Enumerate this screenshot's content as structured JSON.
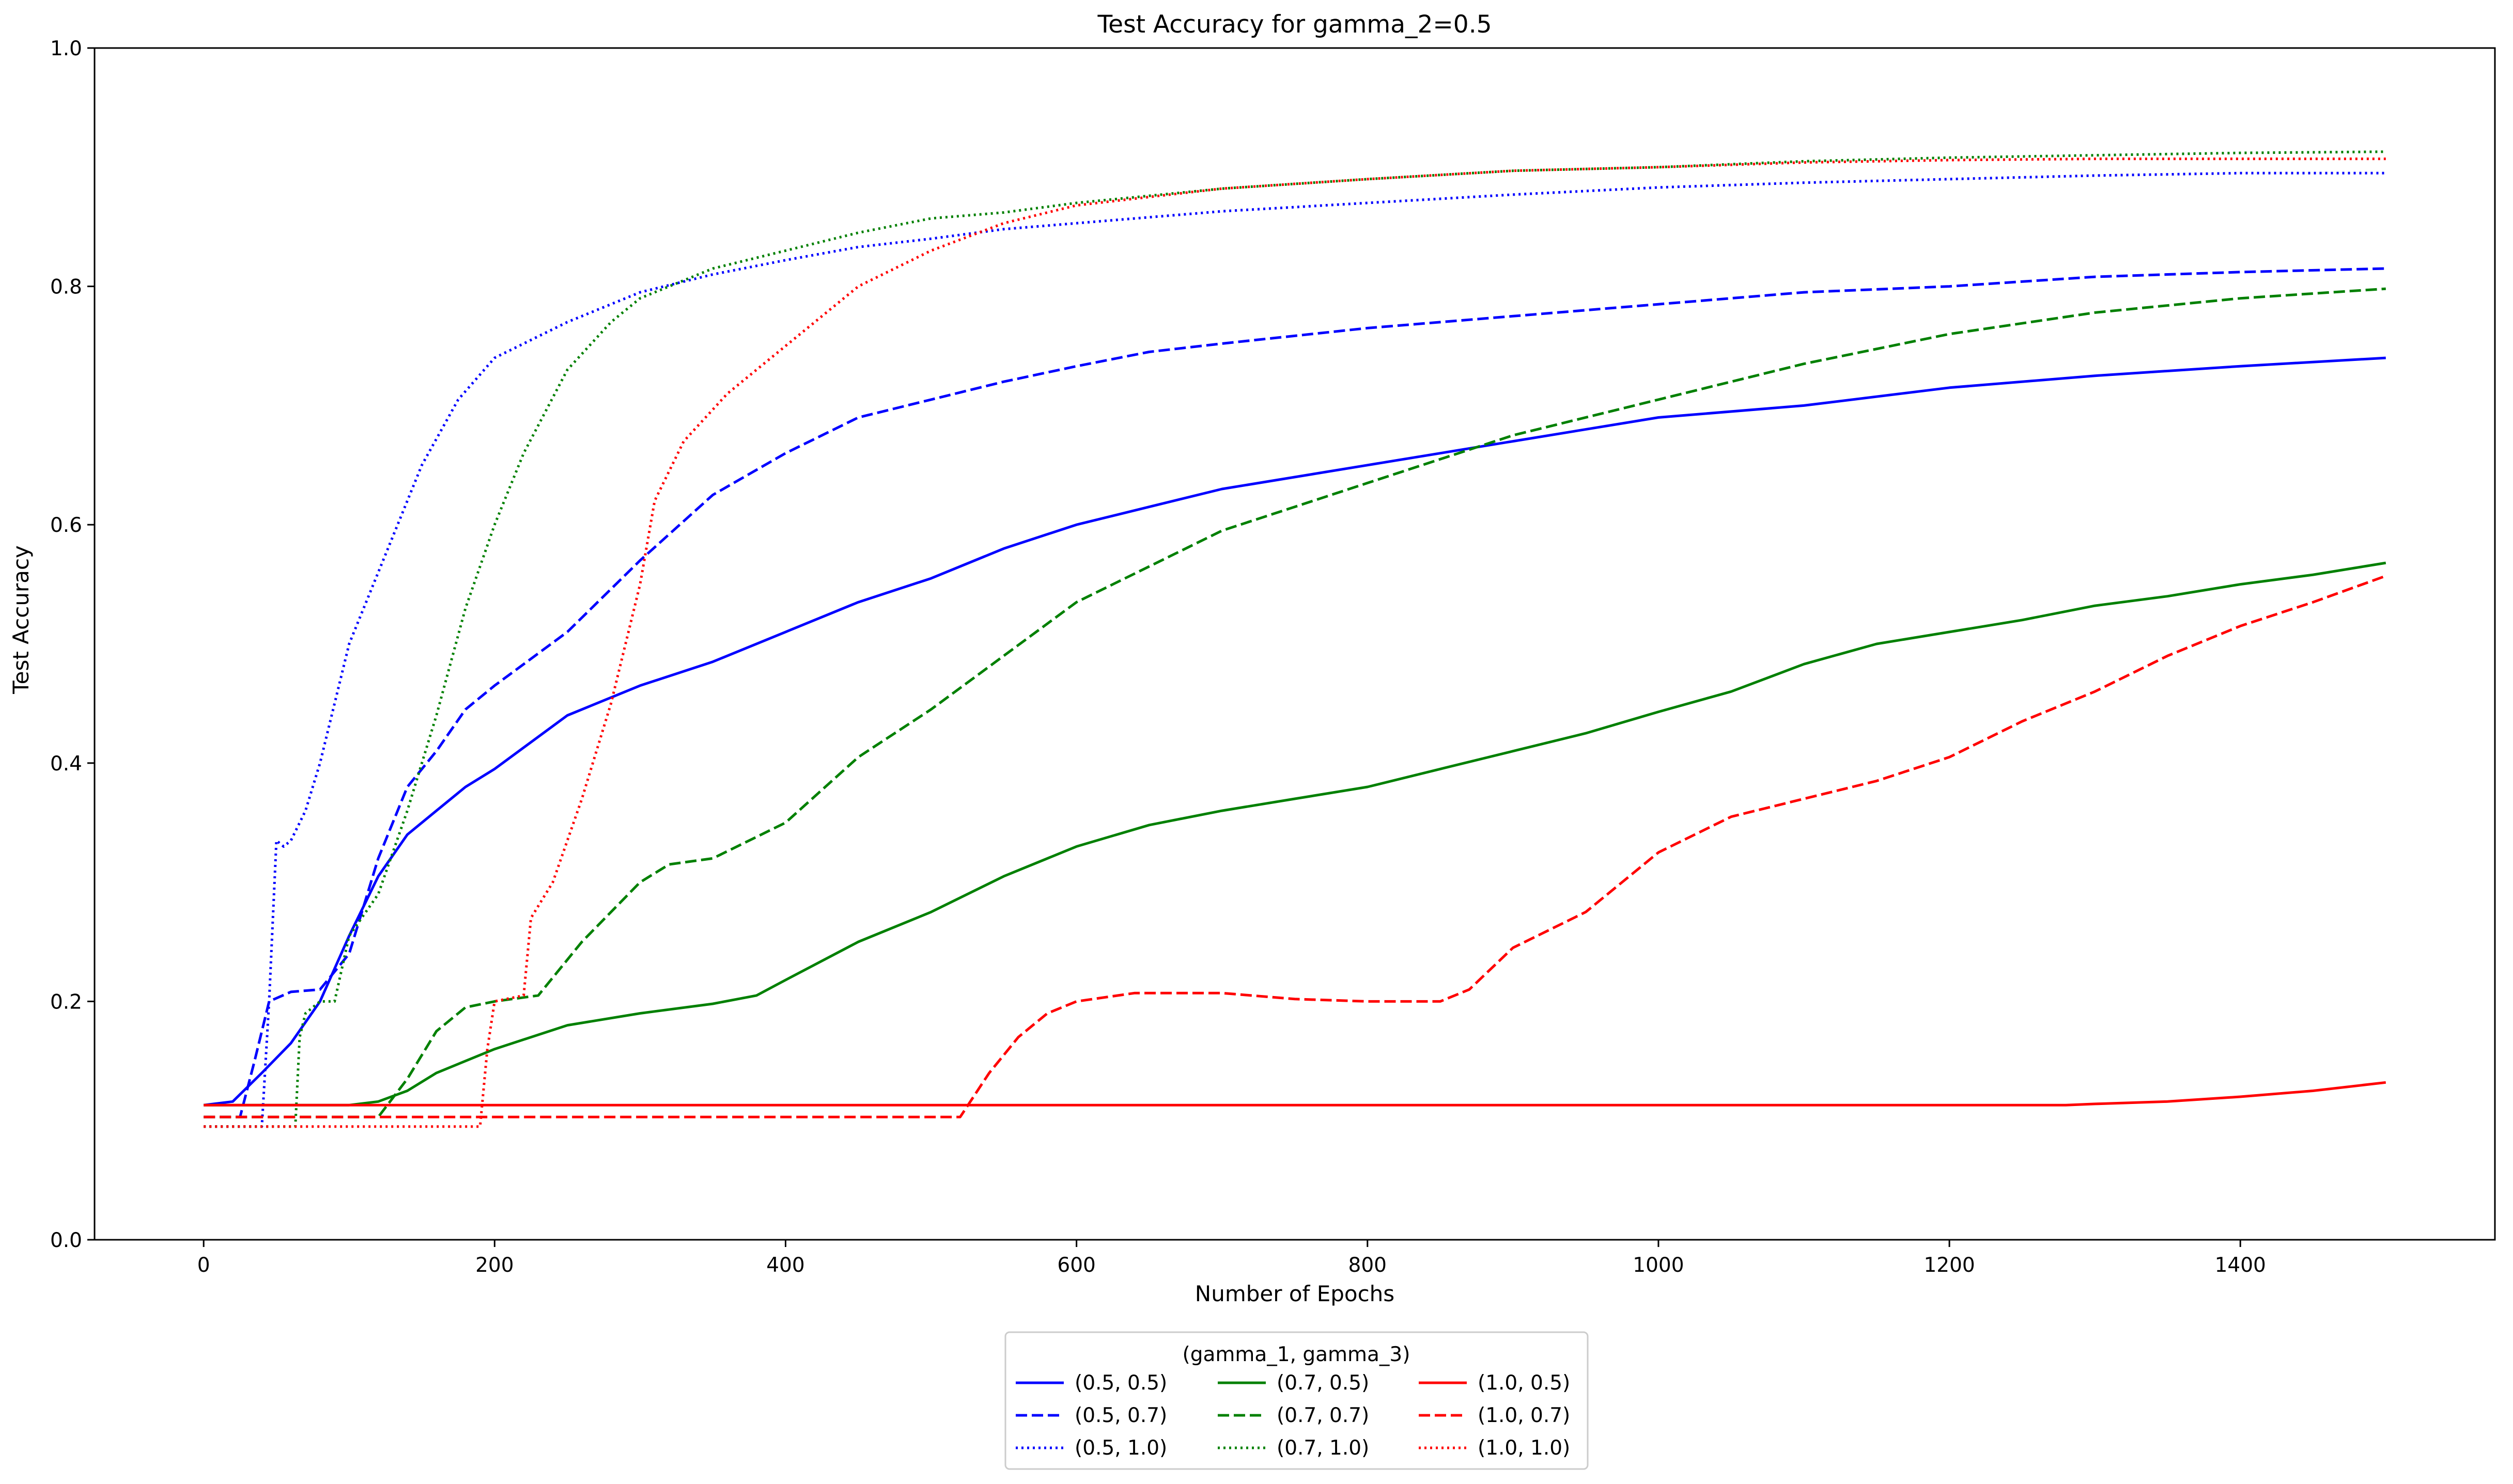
{
  "chart_data": {
    "type": "line",
    "title": "Test Accuracy for gamma_2=0.5",
    "xlabel": "Number of Epochs",
    "ylabel": "Test Accuracy",
    "xlim": [
      -75,
      1575
    ],
    "ylim": [
      0.0,
      1.0
    ],
    "xticks": [
      0,
      200,
      400,
      600,
      800,
      1000,
      1200,
      1400
    ],
    "yticks": [
      0.0,
      0.2,
      0.4,
      0.6,
      0.8,
      1.0
    ],
    "xtick_labels": [
      "0",
      "200",
      "400",
      "600",
      "800",
      "1000",
      "1200",
      "1400"
    ],
    "ytick_labels": [
      "0.0",
      "0.2",
      "0.4",
      "0.6",
      "0.8",
      "1.0"
    ],
    "grid": false,
    "legend": {
      "title": "(gamma_1, gamma_3)",
      "placement": "below-center",
      "columns": 3
    },
    "series": [
      {
        "name": "(0.5, 0.5)",
        "color": "#0000ff",
        "dash": "solid",
        "points": [
          [
            0,
            0.113
          ],
          [
            20,
            0.116
          ],
          [
            40,
            0.14
          ],
          [
            60,
            0.165
          ],
          [
            80,
            0.2
          ],
          [
            100,
            0.255
          ],
          [
            120,
            0.305
          ],
          [
            140,
            0.34
          ],
          [
            160,
            0.36
          ],
          [
            180,
            0.38
          ],
          [
            200,
            0.395
          ],
          [
            250,
            0.44
          ],
          [
            300,
            0.465
          ],
          [
            350,
            0.485
          ],
          [
            400,
            0.51
          ],
          [
            450,
            0.535
          ],
          [
            500,
            0.555
          ],
          [
            550,
            0.58
          ],
          [
            600,
            0.6
          ],
          [
            650,
            0.615
          ],
          [
            700,
            0.63
          ],
          [
            800,
            0.65
          ],
          [
            900,
            0.67
          ],
          [
            1000,
            0.69
          ],
          [
            1100,
            0.7
          ],
          [
            1200,
            0.715
          ],
          [
            1300,
            0.725
          ],
          [
            1400,
            0.733
          ],
          [
            1500,
            0.74
          ]
        ]
      },
      {
        "name": "(0.5, 0.7)",
        "color": "#0000ff",
        "dash": "dashed",
        "points": [
          [
            0,
            0.103
          ],
          [
            25,
            0.103
          ],
          [
            35,
            0.15
          ],
          [
            45,
            0.2
          ],
          [
            60,
            0.208
          ],
          [
            80,
            0.21
          ],
          [
            100,
            0.24
          ],
          [
            120,
            0.32
          ],
          [
            140,
            0.38
          ],
          [
            160,
            0.41
          ],
          [
            180,
            0.445
          ],
          [
            200,
            0.465
          ],
          [
            250,
            0.51
          ],
          [
            300,
            0.57
          ],
          [
            350,
            0.625
          ],
          [
            400,
            0.66
          ],
          [
            450,
            0.69
          ],
          [
            500,
            0.705
          ],
          [
            550,
            0.72
          ],
          [
            600,
            0.733
          ],
          [
            650,
            0.745
          ],
          [
            700,
            0.752
          ],
          [
            800,
            0.765
          ],
          [
            900,
            0.775
          ],
          [
            1000,
            0.785
          ],
          [
            1100,
            0.795
          ],
          [
            1200,
            0.8
          ],
          [
            1300,
            0.808
          ],
          [
            1400,
            0.812
          ],
          [
            1500,
            0.815
          ]
        ]
      },
      {
        "name": "(0.5, 1.0)",
        "color": "#0000ff",
        "dash": "dotted",
        "points": [
          [
            0,
            0.095
          ],
          [
            40,
            0.095
          ],
          [
            45,
            0.2
          ],
          [
            50,
            0.335
          ],
          [
            55,
            0.33
          ],
          [
            60,
            0.335
          ],
          [
            70,
            0.36
          ],
          [
            80,
            0.4
          ],
          [
            100,
            0.5
          ],
          [
            120,
            0.56
          ],
          [
            150,
            0.65
          ],
          [
            175,
            0.705
          ],
          [
            200,
            0.74
          ],
          [
            250,
            0.77
          ],
          [
            300,
            0.795
          ],
          [
            350,
            0.81
          ],
          [
            400,
            0.822
          ],
          [
            450,
            0.833
          ],
          [
            500,
            0.84
          ],
          [
            550,
            0.848
          ],
          [
            600,
            0.853
          ],
          [
            700,
            0.863
          ],
          [
            800,
            0.87
          ],
          [
            900,
            0.877
          ],
          [
            1000,
            0.883
          ],
          [
            1100,
            0.887
          ],
          [
            1200,
            0.89
          ],
          [
            1300,
            0.893
          ],
          [
            1400,
            0.895
          ],
          [
            1500,
            0.895
          ]
        ]
      },
      {
        "name": "(0.7, 0.5)",
        "color": "#008000",
        "dash": "solid",
        "points": [
          [
            0,
            0.113
          ],
          [
            100,
            0.113
          ],
          [
            120,
            0.116
          ],
          [
            140,
            0.125
          ],
          [
            160,
            0.14
          ],
          [
            200,
            0.16
          ],
          [
            250,
            0.18
          ],
          [
            300,
            0.19
          ],
          [
            350,
            0.198
          ],
          [
            380,
            0.205
          ],
          [
            400,
            0.218
          ],
          [
            450,
            0.25
          ],
          [
            500,
            0.275
          ],
          [
            550,
            0.305
          ],
          [
            600,
            0.33
          ],
          [
            650,
            0.348
          ],
          [
            700,
            0.36
          ],
          [
            750,
            0.37
          ],
          [
            800,
            0.38
          ],
          [
            850,
            0.395
          ],
          [
            900,
            0.41
          ],
          [
            950,
            0.425
          ],
          [
            1000,
            0.443
          ],
          [
            1050,
            0.46
          ],
          [
            1100,
            0.483
          ],
          [
            1150,
            0.5
          ],
          [
            1200,
            0.51
          ],
          [
            1250,
            0.52
          ],
          [
            1300,
            0.532
          ],
          [
            1350,
            0.54
          ],
          [
            1400,
            0.55
          ],
          [
            1450,
            0.558
          ],
          [
            1500,
            0.568
          ]
        ]
      },
      {
        "name": "(0.7, 0.7)",
        "color": "#008000",
        "dash": "dashed",
        "points": [
          [
            0,
            0.103
          ],
          [
            120,
            0.103
          ],
          [
            140,
            0.135
          ],
          [
            160,
            0.175
          ],
          [
            180,
            0.195
          ],
          [
            200,
            0.2
          ],
          [
            230,
            0.205
          ],
          [
            260,
            0.25
          ],
          [
            300,
            0.3
          ],
          [
            320,
            0.315
          ],
          [
            350,
            0.32
          ],
          [
            400,
            0.35
          ],
          [
            450,
            0.405
          ],
          [
            500,
            0.445
          ],
          [
            550,
            0.49
          ],
          [
            600,
            0.535
          ],
          [
            650,
            0.565
          ],
          [
            700,
            0.595
          ],
          [
            750,
            0.615
          ],
          [
            800,
            0.635
          ],
          [
            850,
            0.655
          ],
          [
            900,
            0.675
          ],
          [
            1000,
            0.705
          ],
          [
            1100,
            0.735
          ],
          [
            1200,
            0.76
          ],
          [
            1300,
            0.778
          ],
          [
            1400,
            0.79
          ],
          [
            1500,
            0.798
          ]
        ]
      },
      {
        "name": "(0.7, 1.0)",
        "color": "#008000",
        "dash": "dotted",
        "points": [
          [
            0,
            0.095
          ],
          [
            63,
            0.095
          ],
          [
            66,
            0.17
          ],
          [
            70,
            0.19
          ],
          [
            80,
            0.2
          ],
          [
            90,
            0.2
          ],
          [
            100,
            0.255
          ],
          [
            120,
            0.29
          ],
          [
            140,
            0.36
          ],
          [
            160,
            0.44
          ],
          [
            180,
            0.53
          ],
          [
            200,
            0.6
          ],
          [
            220,
            0.66
          ],
          [
            250,
            0.73
          ],
          [
            280,
            0.77
          ],
          [
            300,
            0.79
          ],
          [
            350,
            0.815
          ],
          [
            400,
            0.83
          ],
          [
            450,
            0.845
          ],
          [
            500,
            0.857
          ],
          [
            550,
            0.862
          ],
          [
            600,
            0.87
          ],
          [
            700,
            0.882
          ],
          [
            800,
            0.89
          ],
          [
            900,
            0.897
          ],
          [
            1000,
            0.9
          ],
          [
            1100,
            0.905
          ],
          [
            1200,
            0.908
          ],
          [
            1300,
            0.91
          ],
          [
            1400,
            0.912
          ],
          [
            1500,
            0.913
          ]
        ]
      },
      {
        "name": "(1.0, 0.5)",
        "color": "#ff0000",
        "dash": "solid",
        "points": [
          [
            0,
            0.113
          ],
          [
            1000,
            0.113
          ],
          [
            1280,
            0.113
          ],
          [
            1300,
            0.114
          ],
          [
            1350,
            0.116
          ],
          [
            1400,
            0.12
          ],
          [
            1450,
            0.125
          ],
          [
            1500,
            0.132
          ]
        ]
      },
      {
        "name": "(1.0, 0.7)",
        "color": "#ff0000",
        "dash": "dashed",
        "points": [
          [
            0,
            0.103
          ],
          [
            520,
            0.103
          ],
          [
            540,
            0.14
          ],
          [
            560,
            0.17
          ],
          [
            580,
            0.19
          ],
          [
            600,
            0.2
          ],
          [
            640,
            0.207
          ],
          [
            700,
            0.207
          ],
          [
            750,
            0.202
          ],
          [
            800,
            0.2
          ],
          [
            850,
            0.2
          ],
          [
            870,
            0.21
          ],
          [
            900,
            0.245
          ],
          [
            950,
            0.275
          ],
          [
            1000,
            0.325
          ],
          [
            1050,
            0.355
          ],
          [
            1100,
            0.37
          ],
          [
            1150,
            0.385
          ],
          [
            1200,
            0.405
          ],
          [
            1250,
            0.435
          ],
          [
            1300,
            0.46
          ],
          [
            1350,
            0.49
          ],
          [
            1400,
            0.515
          ],
          [
            1450,
            0.535
          ],
          [
            1500,
            0.557
          ]
        ]
      },
      {
        "name": "(1.0, 1.0)",
        "color": "#ff0000",
        "dash": "dotted",
        "points": [
          [
            0,
            0.095
          ],
          [
            190,
            0.095
          ],
          [
            195,
            0.16
          ],
          [
            200,
            0.2
          ],
          [
            220,
            0.205
          ],
          [
            225,
            0.27
          ],
          [
            240,
            0.3
          ],
          [
            260,
            0.37
          ],
          [
            280,
            0.45
          ],
          [
            300,
            0.55
          ],
          [
            310,
            0.62
          ],
          [
            330,
            0.67
          ],
          [
            360,
            0.71
          ],
          [
            400,
            0.75
          ],
          [
            450,
            0.8
          ],
          [
            500,
            0.83
          ],
          [
            550,
            0.853
          ],
          [
            600,
            0.868
          ],
          [
            700,
            0.882
          ],
          [
            800,
            0.89
          ],
          [
            900,
            0.897
          ],
          [
            1000,
            0.9
          ],
          [
            1100,
            0.904
          ],
          [
            1200,
            0.906
          ],
          [
            1300,
            0.907
          ],
          [
            1400,
            0.907
          ],
          [
            1500,
            0.907
          ]
        ]
      }
    ]
  }
}
